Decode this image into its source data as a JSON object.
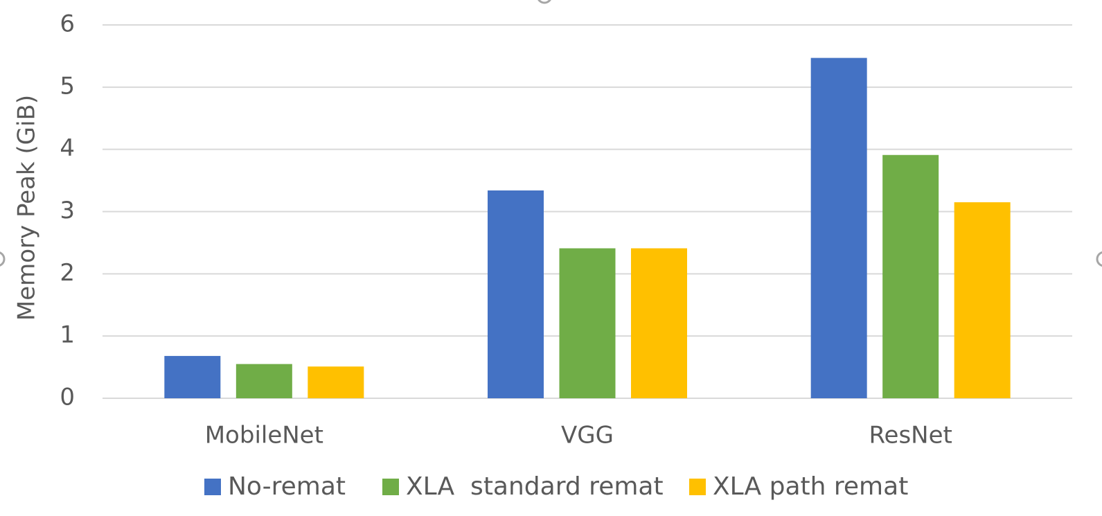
{
  "chart_data": {
    "type": "bar",
    "title": "",
    "xlabel": "",
    "ylabel": "Memory Peak (GiB)",
    "ylim": [
      0,
      6
    ],
    "yticks": [
      "0",
      "1",
      "2",
      "3",
      "4",
      "5",
      "6"
    ],
    "grid": true,
    "legend_position": "bottom",
    "categories": [
      "MobileNet",
      "VGG",
      "ResNet"
    ],
    "series": [
      {
        "name": "No-remat",
        "color": "#4472C4",
        "values": [
          0.68,
          3.34,
          5.47
        ]
      },
      {
        "name": "XLA  standard remat",
        "color": "#70AD47",
        "values": [
          0.55,
          2.41,
          3.91
        ]
      },
      {
        "name": "XLA path remat",
        "color": "#FFC000",
        "values": [
          0.51,
          2.41,
          3.15
        ]
      }
    ]
  }
}
